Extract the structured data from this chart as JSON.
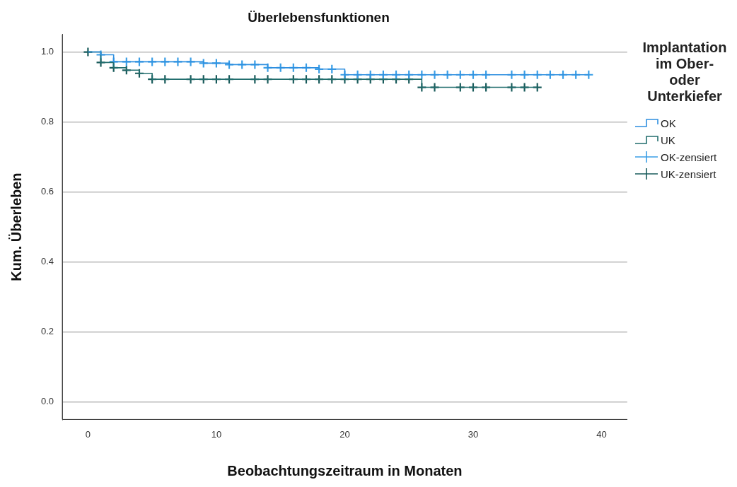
{
  "chart_data": {
    "type": "step",
    "title": "Überlebensfunktionen",
    "xlabel": "Beobachtungszeitraum in Monaten",
    "ylabel": "Kum. Überleben",
    "legend_title": "Implantation im Ober- oder Unterkiefer",
    "xlim": [
      -2,
      42
    ],
    "xticks": [
      0,
      10,
      20,
      30,
      40
    ],
    "ylim": [
      -0.05,
      1.05
    ],
    "yticks": [
      {
        "value": 0,
        "label": "0.0"
      },
      {
        "value": 0.2,
        "label": "0.2"
      },
      {
        "value": 0.4,
        "label": "0.4"
      },
      {
        "value": 0.6,
        "label": "0.6"
      },
      {
        "value": 0.8,
        "label": "0.8"
      },
      {
        "value": 1,
        "label": "1.0"
      }
    ],
    "grid": "y",
    "legend": "right",
    "marker": "none",
    "series": [
      {
        "name": "OK",
        "type": "step",
        "color": "#2e8fe0",
        "x": [
          0,
          1,
          2,
          9,
          11,
          14,
          18,
          20,
          39
        ],
        "values": [
          1,
          0.992,
          0.972,
          0.968,
          0.964,
          0.955,
          0.951,
          0.935,
          0.935
        ]
      },
      {
        "name": "UK",
        "type": "step",
        "color": "#226e6e",
        "x": [
          0,
          1,
          2,
          3,
          4,
          5,
          26,
          35
        ],
        "values": [
          1,
          0.97,
          0.955,
          0.948,
          0.939,
          0.922,
          0.899,
          0.899
        ]
      },
      {
        "name": "OK-zensiert",
        "type": "scatter",
        "marker": "cross",
        "color": "#3a9ee6",
        "x": [
          1,
          2,
          3,
          4,
          5,
          6,
          7,
          8,
          9,
          10,
          11,
          12,
          13,
          14,
          15,
          16,
          17,
          18,
          19,
          20,
          21,
          22,
          23,
          24,
          25,
          26,
          27,
          28,
          29,
          30,
          31,
          33,
          34,
          35,
          36,
          37,
          38,
          39
        ],
        "values": [
          0.992,
          0.972,
          0.972,
          0.972,
          0.972,
          0.972,
          0.972,
          0.972,
          0.968,
          0.968,
          0.964,
          0.964,
          0.964,
          0.955,
          0.955,
          0.955,
          0.955,
          0.951,
          0.951,
          0.935,
          0.935,
          0.935,
          0.935,
          0.935,
          0.935,
          0.935,
          0.935,
          0.935,
          0.935,
          0.935,
          0.935,
          0.935,
          0.935,
          0.935,
          0.935,
          0.935,
          0.935,
          0.935
        ]
      },
      {
        "name": "UK-zensiert",
        "type": "scatter",
        "marker": "cross",
        "color": "#1a5c5c",
        "x": [
          0,
          1,
          2,
          3,
          4,
          5,
          6,
          8,
          9,
          10,
          11,
          13,
          14,
          16,
          17,
          18,
          19,
          20,
          21,
          22,
          23,
          24,
          25,
          26,
          27,
          29,
          30,
          31,
          33,
          34,
          35
        ],
        "values": [
          1,
          0.97,
          0.955,
          0.948,
          0.939,
          0.922,
          0.922,
          0.922,
          0.922,
          0.922,
          0.922,
          0.922,
          0.922,
          0.922,
          0.922,
          0.922,
          0.922,
          0.922,
          0.922,
          0.922,
          0.922,
          0.922,
          0.922,
          0.899,
          0.899,
          0.899,
          0.899,
          0.899,
          0.899,
          0.899,
          0.899
        ]
      }
    ]
  }
}
